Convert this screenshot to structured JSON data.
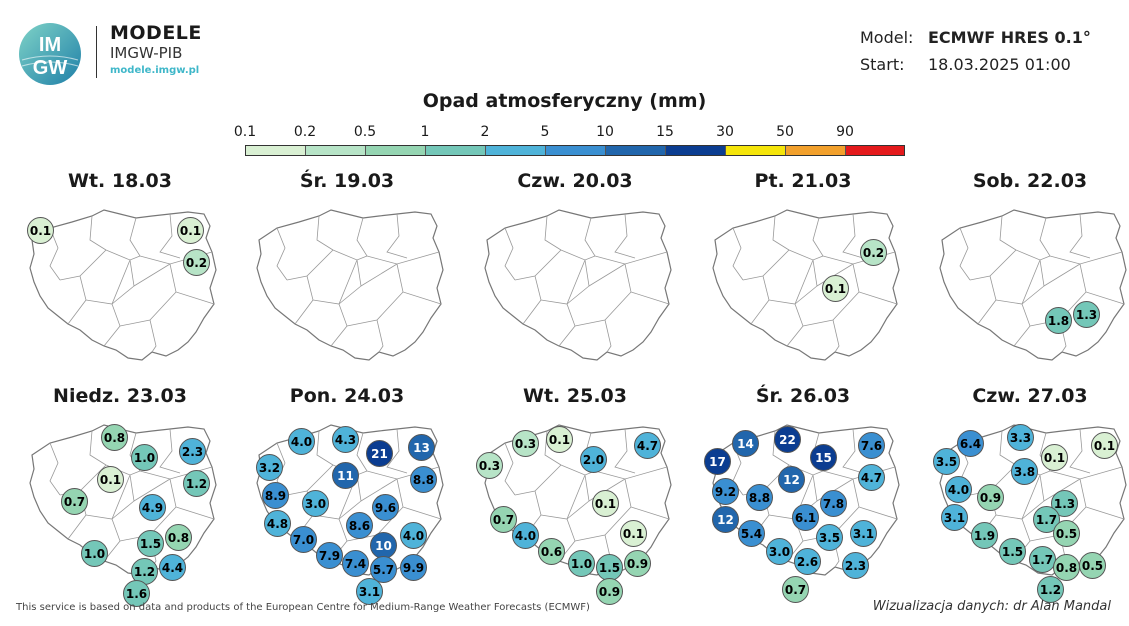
{
  "header": {
    "logo_text_top": "IM",
    "logo_text_bottom": "GW",
    "title": "MODELE",
    "subtitle": "IMGW-PIB",
    "url": "modele.imgw.pl",
    "model_label": "Model:",
    "model_value": "ECMWF HRES 0.1°",
    "start_label": "Start:",
    "start_value": "18.03.2025 01:00"
  },
  "legend": {
    "title": "Opad atmosferyczny (mm)",
    "ticks": [
      "0.1",
      "0.2",
      "0.5",
      "1",
      "2",
      "5",
      "10",
      "15",
      "30",
      "50",
      "90"
    ],
    "colors": [
      "#d9f0d3",
      "#b7e4c7",
      "#95d5b2",
      "#74c7b8",
      "#4fb3d9",
      "#3a8fd1",
      "#2166ac",
      "#0b3d91",
      "#f5e50a",
      "#f2a02c",
      "#e41a1c"
    ]
  },
  "footer": {
    "left": "This service is based on data and products of the European Centre for Medium-Range Weather Forecasts (ECMWF)",
    "right": "Wizualizacja danych: dr Alan Mandal"
  },
  "chart_data": {
    "type": "map",
    "title": "Opad atmosferyczny (mm)",
    "days": [
      {
        "label": "Wt. 18.03",
        "values": [
          "0.1",
          "0.1",
          "0.2"
        ]
      },
      {
        "label": "Śr. 19.03",
        "values": []
      },
      {
        "label": "Czw. 20.03",
        "values": []
      },
      {
        "label": "Pt. 21.03",
        "values": [
          "0.2",
          "0.1"
        ]
      },
      {
        "label": "Sob. 22.03",
        "values": [
          "1.8",
          "1.3"
        ]
      },
      {
        "label": "Niedz. 23.03",
        "values": [
          "0.8",
          "1.0",
          "2.3",
          "1.2",
          "0.1",
          "0.7",
          "4.9",
          "1.5",
          "0.8",
          "1.0",
          "1.2",
          "4.4",
          "1.6"
        ]
      },
      {
        "label": "Pon. 24.03",
        "values": [
          "4.0",
          "4.3",
          "21",
          "13",
          "3.2",
          "11",
          "8.8",
          "8.9",
          "3.0",
          "9.6",
          "4.8",
          "8.6",
          "7.0",
          "10",
          "4.0",
          "7.9",
          "7.4",
          "5.7",
          "9.9",
          "3.1"
        ]
      },
      {
        "label": "Wt. 25.03",
        "values": [
          "0.3",
          "0.1",
          "0.3",
          "2.0",
          "4.7",
          "0.1",
          "0.7",
          "4.0",
          "0.1",
          "0.6",
          "1.0",
          "1.5",
          "0.9",
          "0.9"
        ]
      },
      {
        "label": "Śr. 26.03",
        "values": [
          "14",
          "22",
          "17",
          "15",
          "7.6",
          "12",
          "9.2",
          "8.8",
          "4.7",
          "7.8",
          "6.1",
          "12",
          "3.5",
          "3.1",
          "5.4",
          "3.0",
          "2.6",
          "2.3",
          "0.7"
        ]
      },
      {
        "label": "Czw. 27.03",
        "values": [
          "6.4",
          "3.3",
          "0.1",
          "0.1",
          "3.5",
          "3.8",
          "4.0",
          "0.9",
          "1.3",
          "3.1",
          "1.7",
          "1.9",
          "0.5",
          "1.5",
          "1.7",
          "0.8",
          "0.5",
          "1.2"
        ]
      }
    ]
  }
}
